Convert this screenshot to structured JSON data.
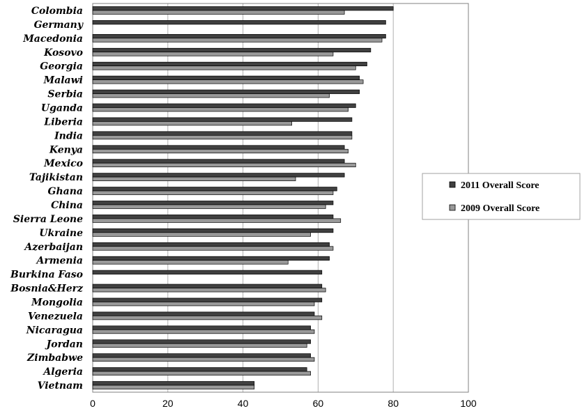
{
  "chart_data": {
    "type": "bar",
    "orientation": "horizontal",
    "categories": [
      "Colombia",
      "Germany",
      "Macedonia",
      "Kosovo",
      "Georgia",
      "Malawi",
      "Serbia",
      "Uganda",
      "Liberia",
      "India",
      "Kenya",
      "Mexico",
      "Tajikistan",
      "Ghana",
      "China",
      "Sierra Leone",
      "Ukraine",
      "Azerbaijan",
      "Armenia",
      "Burkina Faso",
      "Bosnia&Herz",
      "Mongolia",
      "Venezuela",
      "Nicaragua",
      "Jordan",
      "Zimbabwe",
      "Algeria",
      "Vietnam"
    ],
    "series": [
      {
        "name": "2011 Overall Score",
        "color": "#404040",
        "values": [
          80,
          78,
          78,
          74,
          73,
          71,
          71,
          70,
          69,
          69,
          67,
          67,
          67,
          65,
          64,
          64,
          64,
          63,
          63,
          61,
          61,
          61,
          59,
          58,
          58,
          58,
          57,
          43
        ]
      },
      {
        "name": "2009 Overall Score",
        "color": "#999999",
        "values": [
          67,
          0,
          77,
          64,
          70,
          72,
          63,
          68,
          53,
          69,
          68,
          70,
          54,
          64,
          62,
          66,
          58,
          64,
          52,
          0,
          62,
          59,
          61,
          59,
          57,
          59,
          58,
          43
        ]
      }
    ],
    "xlim": [
      0,
      100
    ],
    "xticks": [
      "0",
      "20",
      "40",
      "60",
      "80",
      "100"
    ],
    "grid": "vertical",
    "legend_position": "right"
  }
}
